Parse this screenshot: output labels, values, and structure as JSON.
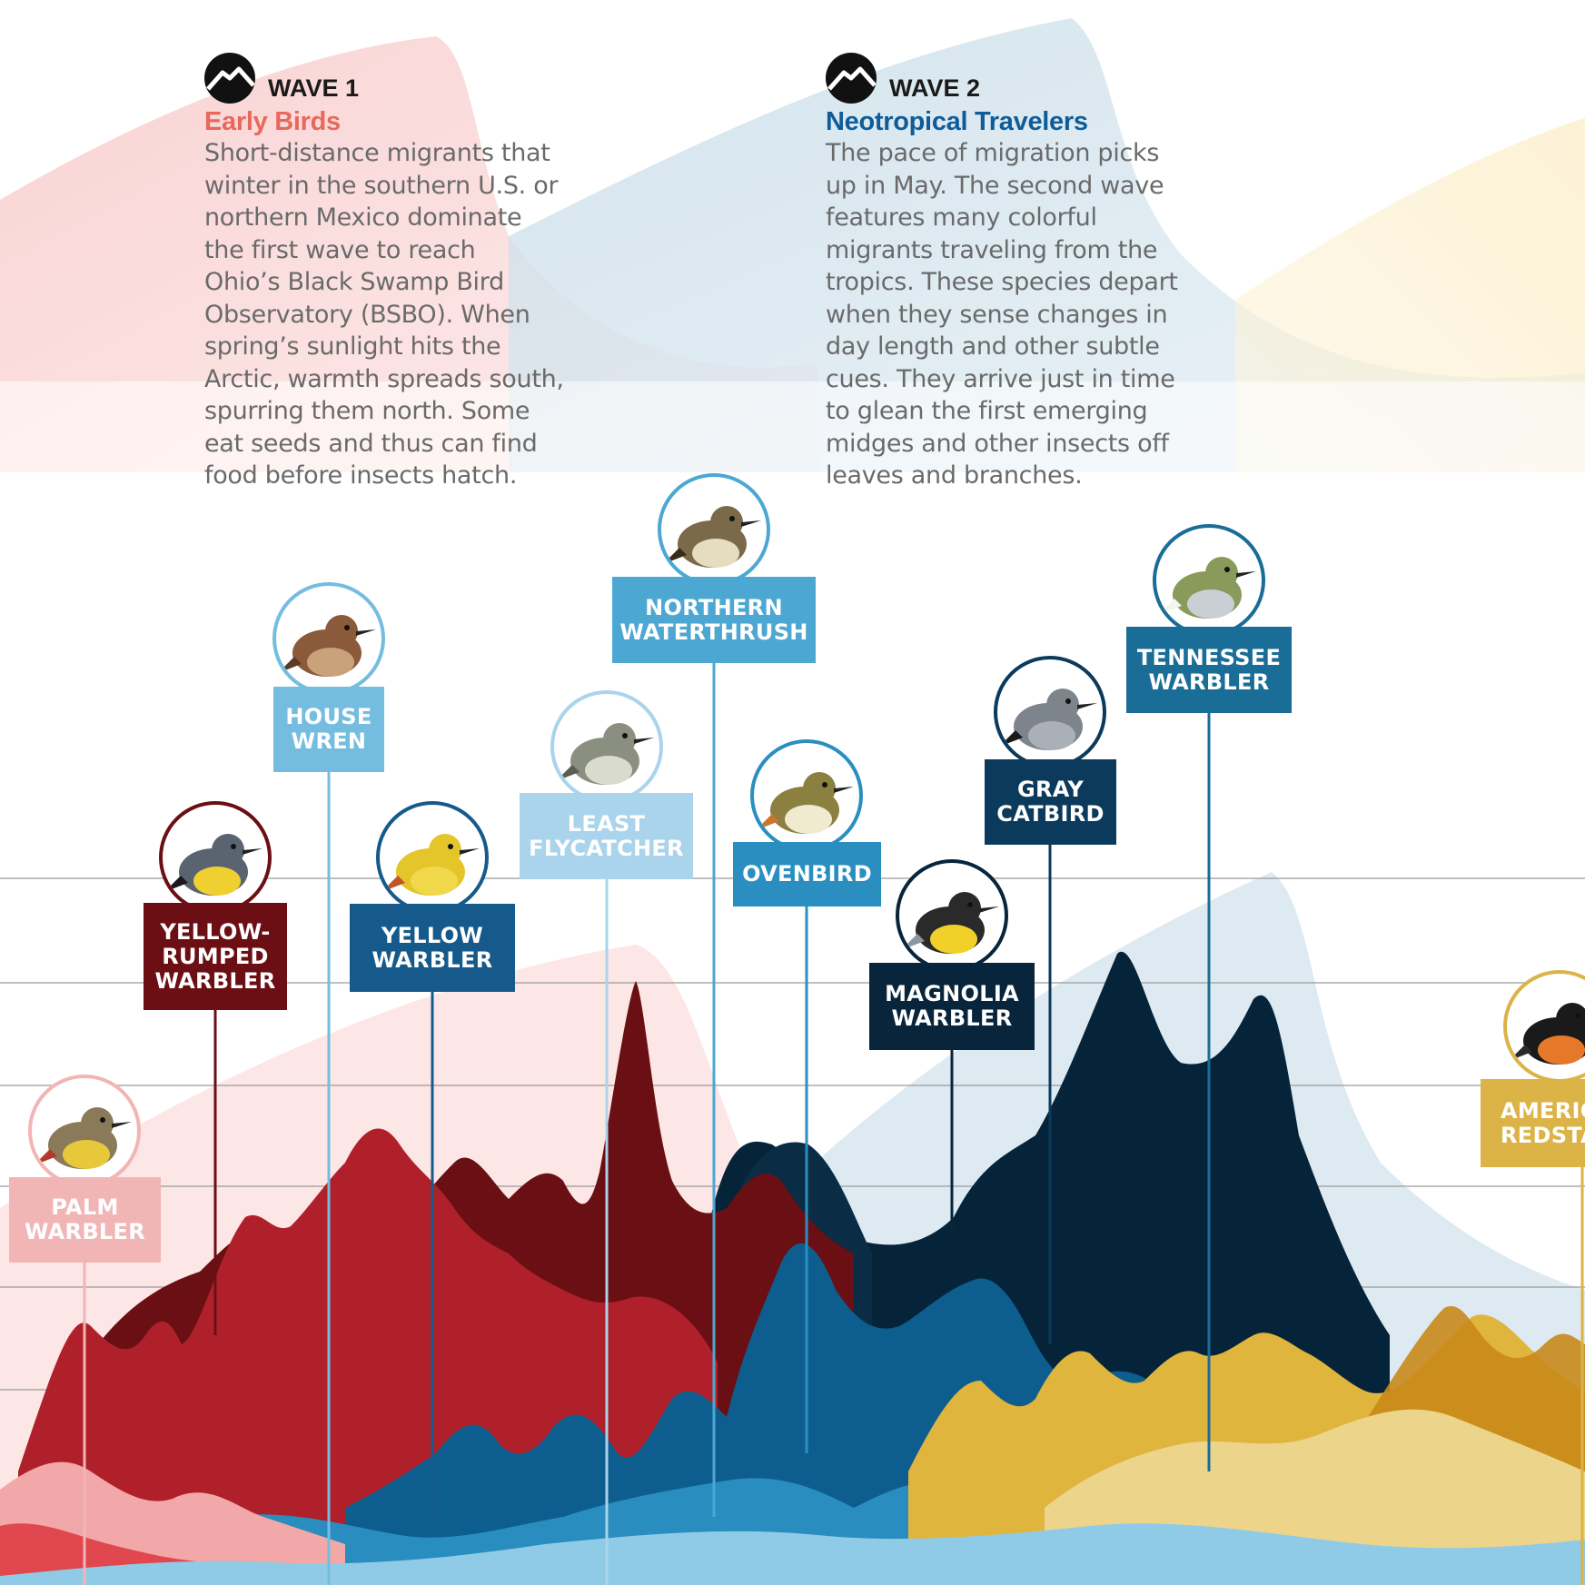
{
  "waves": [
    {
      "label": "WAVE 1",
      "subtitle": "Early Birds",
      "subtitle_color": "#e8685a",
      "body_lines": [
        "Short-distance migrants that",
        "winter in the southern U.S. or",
        "northern Mexico dominate",
        "the first wave to reach",
        "Ohio’s Black Swamp Bird",
        "Observatory (BSBO). When",
        "spring’s sunlight hits the",
        "Arctic, warmth spreads south,",
        "spurring them north. Some",
        "eat seeds and thus can find",
        "food before insects hatch."
      ]
    },
    {
      "label": "WAVE 2",
      "subtitle": "Neotropical Travelers",
      "subtitle_color": "#0f5c99",
      "body_lines": [
        "The pace of migration picks",
        "up in May. The second wave",
        "features many colorful",
        "migrants traveling from the",
        "tropics. These species depart",
        "when they sense changes in",
        "day length and other subtle",
        "cues. They arrive just in time",
        "to glean the first emerging",
        "midges and other insects off",
        "leaves and branches."
      ]
    }
  ],
  "birds": [
    {
      "id": "palm-warbler",
      "lines": [
        "PALM",
        "WARBLER"
      ],
      "color": "#f2b5b5",
      "ring": "#f2b5b5",
      "plumage": "yellow-brown"
    },
    {
      "id": "yellow-rumped-warbler",
      "lines": [
        "YELLOW-",
        "RUMPED",
        "WARBLER"
      ],
      "color": "#6b0f14",
      "ring": "#6b0f14",
      "plumage": "gray-yellow"
    },
    {
      "id": "house-wren",
      "lines": [
        "HOUSE",
        "WREN"
      ],
      "color": "#74bde0",
      "ring": "#74bde0",
      "plumage": "brown"
    },
    {
      "id": "yellow-warbler",
      "lines": [
        "YELLOW",
        "WARBLER"
      ],
      "color": "#155a8a",
      "ring": "#155a8a",
      "plumage": "yellow"
    },
    {
      "id": "least-flycatcher",
      "lines": [
        "LEAST",
        "FLYCATCHER"
      ],
      "color": "#a9d4ec",
      "ring": "#a9d4ec",
      "plumage": "olive-gray"
    },
    {
      "id": "northern-waterthrush",
      "lines": [
        "NORTHERN",
        "WATERTHRUSH"
      ],
      "color": "#4ca8d2",
      "ring": "#4ca8d2",
      "plumage": "streaked-brown"
    },
    {
      "id": "ovenbird",
      "lines": [
        "OVENBIRD"
      ],
      "color": "#2a8fc0",
      "ring": "#2a8fc0",
      "plumage": "olive"
    },
    {
      "id": "magnolia-warbler",
      "lines": [
        "MAGNOLIA",
        "WARBLER"
      ],
      "color": "#08253b",
      "ring": "#08253b",
      "plumage": "yellow-black"
    },
    {
      "id": "gray-catbird",
      "lines": [
        "GRAY",
        "CATBIRD"
      ],
      "color": "#0b3a5c",
      "ring": "#0b3a5c",
      "plumage": "gray"
    },
    {
      "id": "tennessee-warbler",
      "lines": [
        "TENNESSEE",
        "WARBLER"
      ],
      "color": "#1a6d96",
      "ring": "#1a6d96",
      "plumage": "green-gray"
    },
    {
      "id": "american-redstart",
      "lines": [
        "AMERIC",
        "REDSTA"
      ],
      "color": "#dbb346",
      "ring": "#dbb346",
      "plumage": "black-orange"
    }
  ]
}
